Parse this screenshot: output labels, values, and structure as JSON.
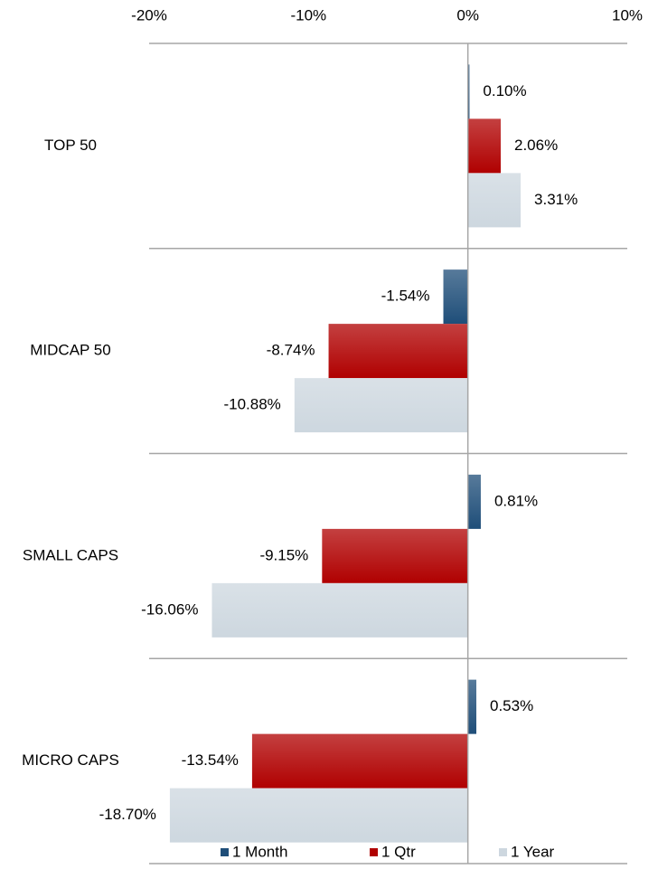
{
  "chart_data": {
    "type": "hbar",
    "categories": [
      "TOP 50",
      "MIDCAP 50",
      "SMALL CAPS",
      "MICRO CAPS"
    ],
    "series": [
      {
        "name": "1 Month",
        "color": "#1f4e79",
        "values": [
          0.1,
          -1.54,
          0.81,
          0.53
        ],
        "value_labels": [
          "0.10%",
          "-1.54%",
          "0.81%",
          "0.53%"
        ]
      },
      {
        "name": "1 Qtr",
        "color": "#b00000",
        "values": [
          2.06,
          -8.74,
          -9.15,
          -13.54
        ],
        "value_labels": [
          "2.06%",
          "-8.74%",
          "-9.15%",
          "-13.54%"
        ]
      },
      {
        "name": "1 Year",
        "color": "#cdd7df",
        "values": [
          3.31,
          -10.88,
          -16.06,
          -18.7
        ],
        "value_labels": [
          "3.31%",
          "-10.88%",
          "-16.06%",
          "-18.70%"
        ]
      }
    ],
    "xlim": [
      -20,
      10
    ],
    "xticks": [
      {
        "value": -20,
        "label": "-20%"
      },
      {
        "value": -10,
        "label": "-10%"
      },
      {
        "value": 0,
        "label": "0%"
      },
      {
        "value": 10,
        "label": "10%"
      }
    ],
    "legend": "bottom"
  }
}
